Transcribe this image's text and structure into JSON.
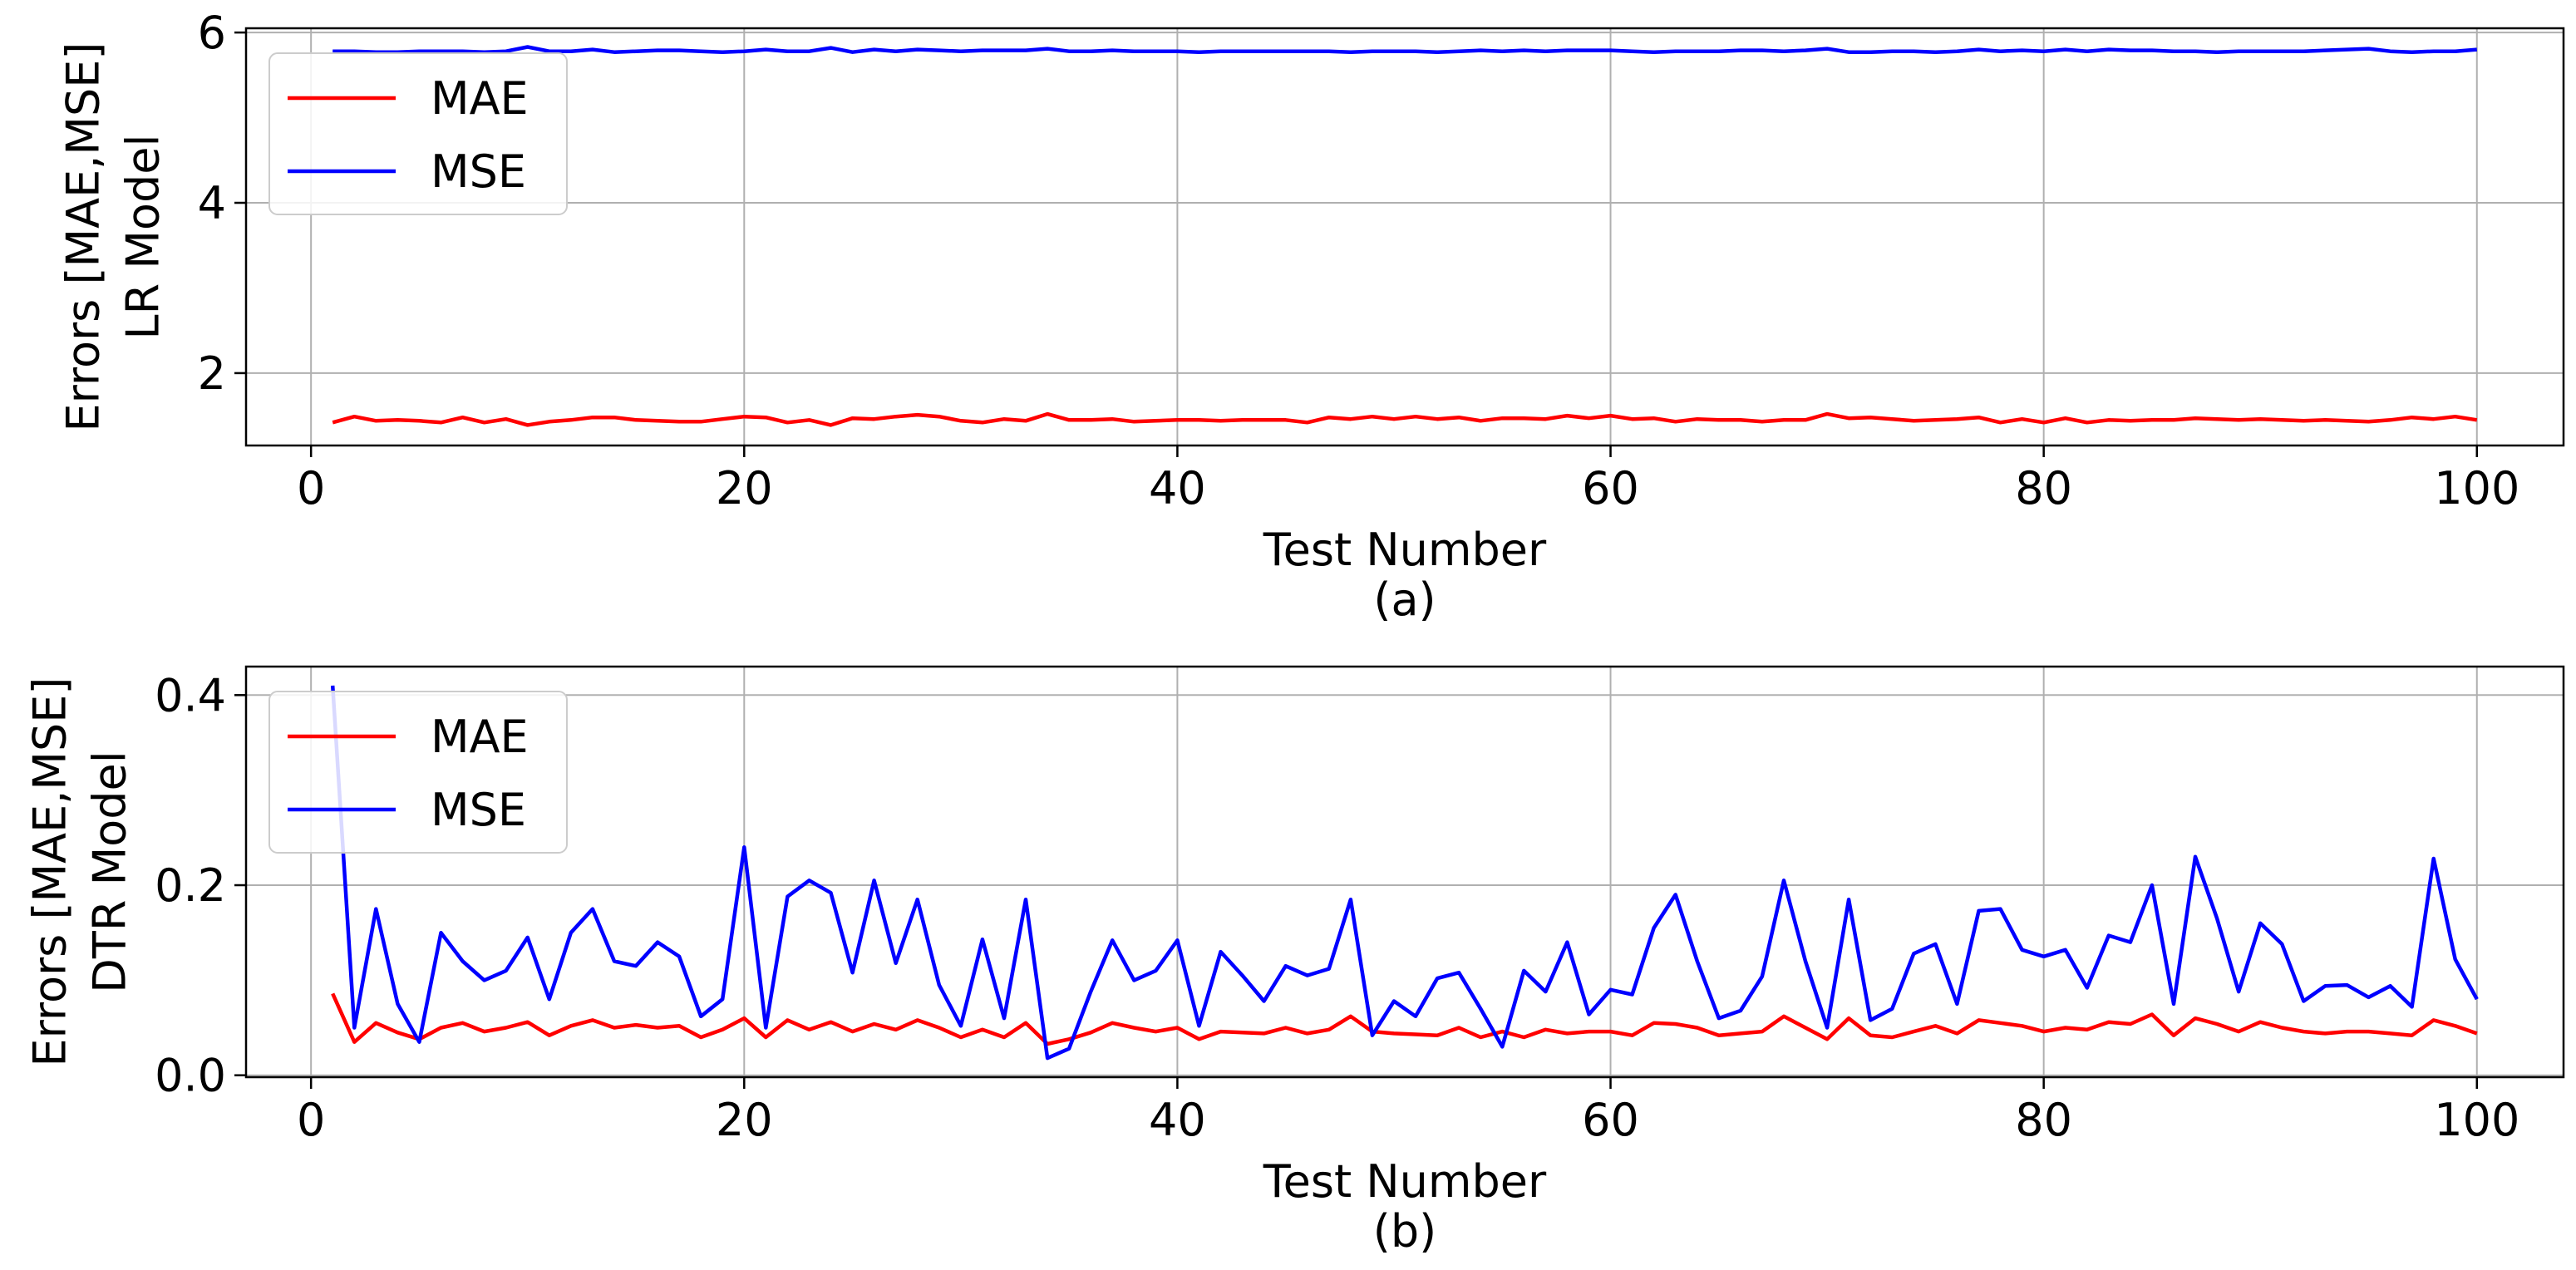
{
  "chart_data": [
    {
      "type": "line",
      "caption": "(a)",
      "xlabel": "Test Number",
      "ylabel_lines": [
        "Errors [MAE,MSE]",
        "LR Model"
      ],
      "xlim": [
        -3,
        104
      ],
      "ylim": [
        1.15,
        6.05
      ],
      "xticks": [
        0,
        20,
        40,
        60,
        80,
        100
      ],
      "xtick_labels": [
        "0",
        "20",
        "40",
        "60",
        "80",
        "100"
      ],
      "yticks": [
        2,
        4,
        6
      ],
      "ytick_labels": [
        "2",
        "4",
        "6"
      ],
      "grid": true,
      "legend": "upper-left",
      "x_start": 1,
      "series": [
        {
          "name": "MAE",
          "color": "#ff0000",
          "values": [
            1.42,
            1.49,
            1.44,
            1.45,
            1.44,
            1.42,
            1.48,
            1.42,
            1.46,
            1.39,
            1.43,
            1.45,
            1.48,
            1.48,
            1.45,
            1.44,
            1.43,
            1.43,
            1.46,
            1.49,
            1.48,
            1.42,
            1.45,
            1.39,
            1.47,
            1.46,
            1.49,
            1.51,
            1.49,
            1.44,
            1.42,
            1.46,
            1.44,
            1.52,
            1.45,
            1.45,
            1.46,
            1.43,
            1.44,
            1.45,
            1.45,
            1.44,
            1.45,
            1.45,
            1.45,
            1.42,
            1.48,
            1.46,
            1.49,
            1.46,
            1.49,
            1.46,
            1.48,
            1.44,
            1.47,
            1.47,
            1.46,
            1.5,
            1.47,
            1.5,
            1.46,
            1.47,
            1.43,
            1.46,
            1.45,
            1.45,
            1.43,
            1.45,
            1.45,
            1.52,
            1.47,
            1.48,
            1.46,
            1.44,
            1.45,
            1.46,
            1.48,
            1.42,
            1.46,
            1.42,
            1.47,
            1.42,
            1.45,
            1.44,
            1.45,
            1.45,
            1.47,
            1.46,
            1.45,
            1.46,
            1.45,
            1.44,
            1.45,
            1.44,
            1.43,
            1.45,
            1.48,
            1.46,
            1.49,
            1.45
          ]
        },
        {
          "name": "MSE",
          "color": "#0000ff",
          "values": [
            5.78,
            5.78,
            5.77,
            5.77,
            5.78,
            5.78,
            5.78,
            5.77,
            5.78,
            5.83,
            5.78,
            5.78,
            5.8,
            5.77,
            5.78,
            5.79,
            5.79,
            5.78,
            5.77,
            5.78,
            5.8,
            5.78,
            5.78,
            5.82,
            5.77,
            5.8,
            5.78,
            5.8,
            5.79,
            5.78,
            5.79,
            5.79,
            5.79,
            5.81,
            5.78,
            5.78,
            5.79,
            5.78,
            5.78,
            5.78,
            5.77,
            5.78,
            5.78,
            5.78,
            5.78,
            5.78,
            5.78,
            5.77,
            5.78,
            5.78,
            5.78,
            5.77,
            5.78,
            5.79,
            5.78,
            5.79,
            5.78,
            5.79,
            5.79,
            5.79,
            5.78,
            5.77,
            5.78,
            5.78,
            5.78,
            5.79,
            5.79,
            5.78,
            5.79,
            5.81,
            5.77,
            5.77,
            5.78,
            5.78,
            5.77,
            5.78,
            5.8,
            5.78,
            5.79,
            5.78,
            5.8,
            5.78,
            5.8,
            5.79,
            5.79,
            5.78,
            5.78,
            5.77,
            5.78,
            5.78,
            5.78,
            5.78,
            5.79,
            5.8,
            5.81,
            5.78,
            5.77,
            5.78,
            5.78,
            5.8
          ]
        }
      ]
    },
    {
      "type": "line",
      "caption": "(b)",
      "xlabel": "Test Number",
      "ylabel_lines": [
        "Errors [MAE,MSE]",
        "DTR Model"
      ],
      "xlim": [
        -3,
        104
      ],
      "ylim": [
        -0.002,
        0.43
      ],
      "xticks": [
        0,
        20,
        40,
        60,
        80,
        100
      ],
      "xtick_labels": [
        "0",
        "20",
        "40",
        "60",
        "80",
        "100"
      ],
      "yticks": [
        0.0,
        0.2,
        0.4
      ],
      "ytick_labels": [
        "0.0",
        "0.2",
        "0.4"
      ],
      "grid": true,
      "legend": "upper-left",
      "x_start": 1,
      "series": [
        {
          "name": "MAE",
          "color": "#ff0000",
          "values": [
            0.086,
            0.035,
            0.055,
            0.045,
            0.038,
            0.05,
            0.055,
            0.046,
            0.05,
            0.056,
            0.042,
            0.052,
            0.058,
            0.05,
            0.053,
            0.05,
            0.052,
            0.04,
            0.048,
            0.06,
            0.04,
            0.058,
            0.048,
            0.056,
            0.046,
            0.054,
            0.048,
            0.058,
            0.05,
            0.04,
            0.048,
            0.04,
            0.055,
            0.033,
            0.038,
            0.045,
            0.055,
            0.05,
            0.046,
            0.05,
            0.038,
            0.046,
            0.045,
            0.044,
            0.05,
            0.044,
            0.048,
            0.062,
            0.046,
            0.044,
            0.043,
            0.042,
            0.05,
            0.04,
            0.046,
            0.04,
            0.048,
            0.044,
            0.046,
            0.046,
            0.042,
            0.055,
            0.054,
            0.05,
            0.042,
            0.044,
            0.046,
            0.062,
            0.05,
            0.038,
            0.06,
            0.042,
            0.04,
            0.046,
            0.052,
            0.044,
            0.058,
            0.055,
            0.052,
            0.046,
            0.05,
            0.048,
            0.056,
            0.054,
            0.064,
            0.042,
            0.06,
            0.054,
            0.046,
            0.056,
            0.05,
            0.046,
            0.044,
            0.046,
            0.046,
            0.044,
            0.042,
            0.058,
            0.052,
            0.044
          ]
        },
        {
          "name": "MSE",
          "color": "#0000ff",
          "values": [
            0.41,
            0.05,
            0.175,
            0.075,
            0.035,
            0.15,
            0.12,
            0.1,
            0.11,
            0.145,
            0.08,
            0.15,
            0.175,
            0.12,
            0.115,
            0.14,
            0.125,
            0.062,
            0.08,
            0.24,
            0.05,
            0.188,
            0.205,
            0.192,
            0.108,
            0.205,
            0.118,
            0.185,
            0.095,
            0.052,
            0.143,
            0.06,
            0.185,
            0.018,
            0.028,
            0.088,
            0.142,
            0.1,
            0.11,
            0.142,
            0.052,
            0.13,
            0.105,
            0.078,
            0.115,
            0.105,
            0.112,
            0.185,
            0.042,
            0.078,
            0.062,
            0.102,
            0.108,
            0.07,
            0.03,
            0.11,
            0.088,
            0.14,
            0.064,
            0.09,
            0.085,
            0.155,
            0.19,
            0.12,
            0.06,
            0.068,
            0.104,
            0.205,
            0.12,
            0.05,
            0.185,
            0.058,
            0.07,
            0.128,
            0.138,
            0.075,
            0.173,
            0.175,
            0.132,
            0.125,
            0.132,
            0.092,
            0.147,
            0.14,
            0.2,
            0.075,
            0.23,
            0.165,
            0.088,
            0.16,
            0.138,
            0.078,
            0.094,
            0.095,
            0.082,
            0.094,
            0.072,
            0.228,
            0.122,
            0.08
          ]
        }
      ]
    }
  ]
}
